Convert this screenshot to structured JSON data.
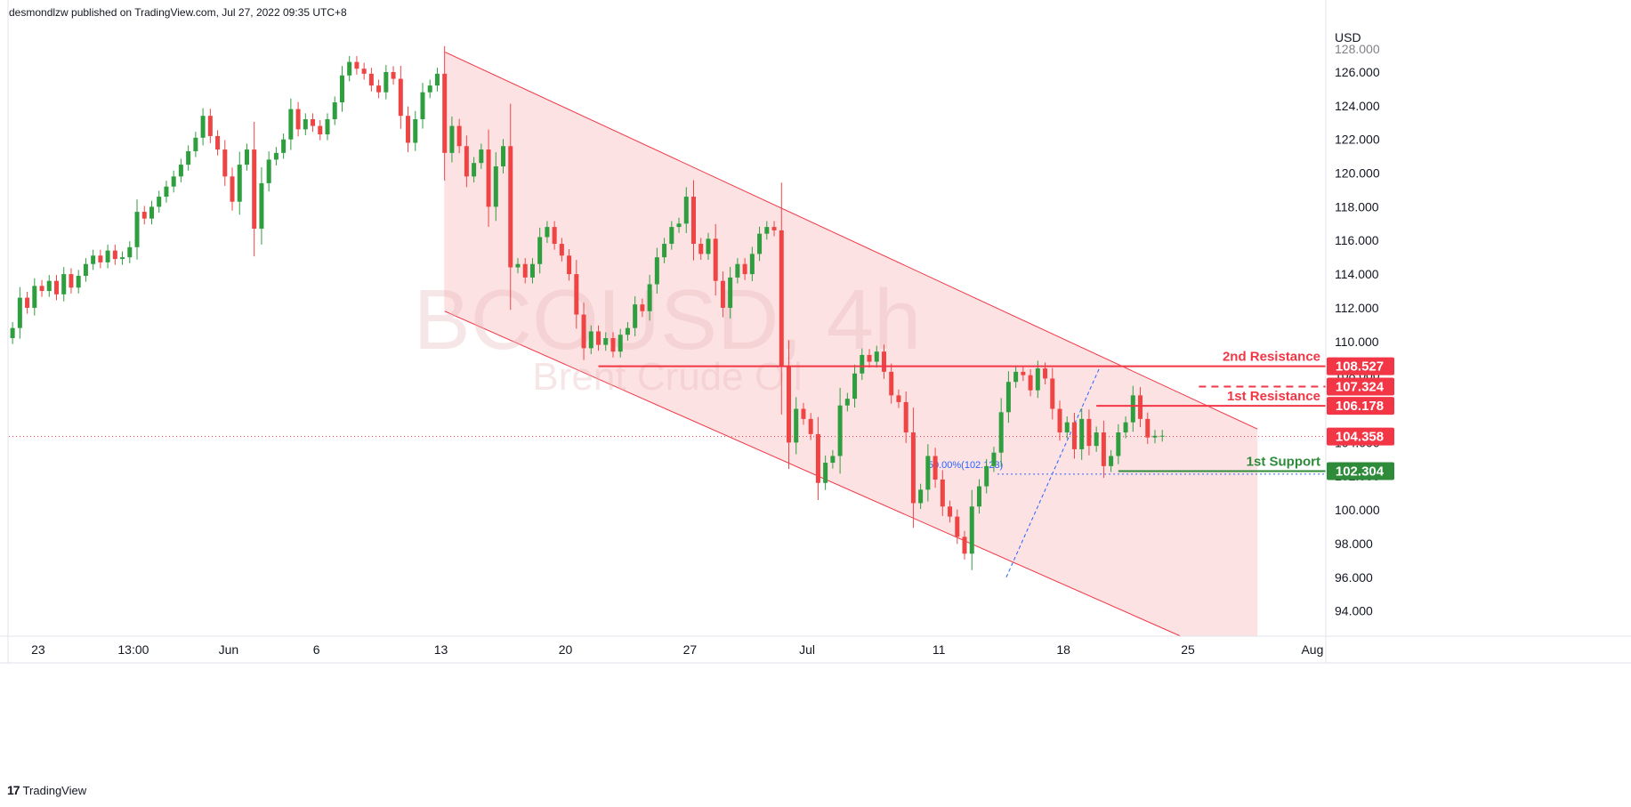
{
  "header": {
    "text": "desmondlzw published on TradingView.com, Jul 27, 2022 09:35 UTC+8"
  },
  "footer": {
    "logo": "17",
    "brand": "TradingView"
  },
  "colors": {
    "up": "#2e9e3e",
    "down": "#ef4444",
    "channel_fill": "#fde2e4",
    "channel_line": "#f23645",
    "resistance": "#f23645",
    "support": "#2e8b3a",
    "axis_text": "#131722",
    "grid": "#e0e3eb"
  },
  "chart_data": {
    "type": "candlestick",
    "symbol": "BCOUSD, 4h",
    "watermark_title": "BCOUSD, 4h",
    "watermark_subtitle": "Brent Crude Oil",
    "currency": "USD",
    "ylim": [
      92.5,
      128.8
    ],
    "y_ticks": [
      "126.000",
      "124.000",
      "122.000",
      "120.000",
      "118.000",
      "116.000",
      "114.000",
      "112.000",
      "110.000",
      "108.000",
      "106.000",
      "104.000",
      "102.000",
      "100.000",
      "98.000",
      "96.000",
      "94.000"
    ],
    "y_tick_top_partial": "128.000",
    "x_ticks": [
      {
        "label": "23",
        "bar": 4
      },
      {
        "label": "13:00",
        "bar": 17
      },
      {
        "label": "Jun",
        "bar": 30
      },
      {
        "label": "6",
        "bar": 42
      },
      {
        "label": "13",
        "bar": 59
      },
      {
        "label": "20",
        "bar": 76
      },
      {
        "label": "27",
        "bar": 93
      },
      {
        "label": "Jul",
        "bar": 109
      },
      {
        "label": "11",
        "bar": 127
      },
      {
        "label": "18",
        "bar": 144
      },
      {
        "label": "25",
        "bar": 161
      },
      {
        "label": "Aug",
        "bar": 178
      }
    ],
    "closes": [
      110.8,
      112.6,
      112.0,
      113.3,
      113.0,
      113.6,
      112.8,
      114.0,
      113.2,
      113.9,
      114.6,
      115.1,
      114.7,
      115.4,
      114.9,
      115.0,
      115.6,
      117.7,
      117.3,
      118.0,
      118.6,
      119.2,
      119.8,
      120.5,
      121.3,
      122.1,
      123.4,
      122.2,
      121.4,
      119.8,
      118.3,
      120.5,
      121.4,
      116.7,
      119.4,
      120.8,
      121.2,
      122.0,
      123.8,
      122.6,
      123.2,
      122.8,
      122.3,
      123.2,
      124.2,
      125.8,
      126.6,
      126.2,
      125.9,
      125.2,
      124.8,
      126.0,
      125.6,
      123.4,
      121.8,
      123.2,
      124.8,
      125.2,
      125.9,
      121.2,
      122.8,
      121.6,
      119.8,
      120.6,
      121.4,
      118.0,
      120.4,
      121.6,
      114.4,
      114.6,
      113.8,
      114.6,
      116.2,
      116.8,
      115.8,
      115.1,
      114.0,
      111.6,
      109.6,
      110.6,
      109.8,
      110.2,
      109.4,
      110.4,
      110.8,
      112.2,
      111.8,
      113.4,
      115.0,
      115.8,
      116.8,
      117.0,
      118.6,
      115.8,
      115.2,
      116.1,
      113.6,
      112.0,
      113.8,
      114.6,
      114.0,
      115.2,
      116.4,
      116.8,
      116.6,
      108.5,
      104.0,
      106.0,
      105.4,
      104.5,
      101.6,
      102.8,
      103.2,
      106.2,
      106.6,
      108.1,
      109.2,
      108.8,
      109.4,
      108.2,
      106.8,
      106.4,
      104.6,
      100.4,
      101.2,
      103.2,
      101.8,
      100.2,
      99.6,
      98.4,
      97.4,
      100.2,
      101.4,
      102.6,
      103.4,
      105.8,
      107.6,
      108.2,
      108.0,
      107.1,
      108.4,
      107.8,
      106.0,
      104.6,
      105.2,
      103.6,
      105.4,
      103.8,
      104.6,
      102.6,
      103.2,
      104.6,
      105.2,
      106.8,
      105.4,
      104.3,
      104.4,
      104.4
    ],
    "levels": [
      {
        "name": "2nd Resistance",
        "value": 108.527,
        "label": "108.527",
        "style": "solid",
        "color": "#f23645"
      },
      {
        "name": "1st Resistance",
        "value": 106.178,
        "label": "106.178",
        "style": "solid",
        "color": "#f23645"
      },
      {
        "name": "",
        "value": 107.324,
        "label": "107.324",
        "style": "dashed",
        "color": "#f23645"
      },
      {
        "name": "1st Support",
        "value": 102.304,
        "label": "102.304",
        "style": "solid",
        "color": "#2e8b3a"
      }
    ],
    "last_price": {
      "value": 104.358,
      "label": "104.358"
    },
    "fib": {
      "label": "50.00%(102.123)",
      "value": 102.123
    },
    "channel": {
      "upper": [
        {
          "bar": 59.5,
          "y": 127.2
        },
        {
          "bar": 170.5,
          "y": 104.8
        }
      ],
      "lower": [
        {
          "bar": 59.5,
          "y": 111.8
        },
        {
          "bar": 160.0,
          "y": 92.5
        }
      ]
    }
  }
}
